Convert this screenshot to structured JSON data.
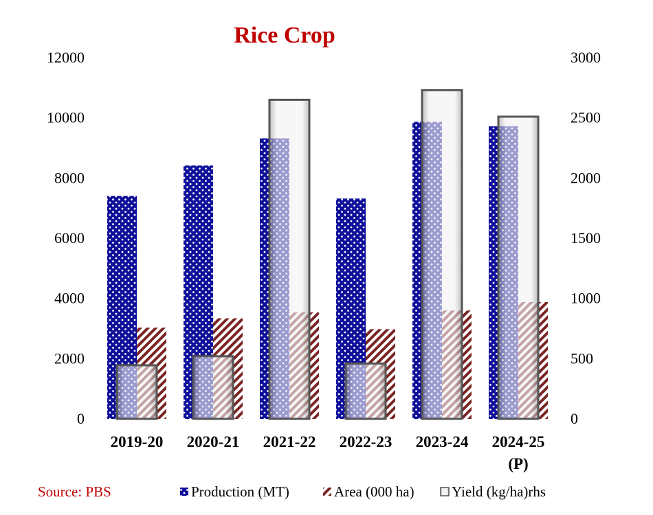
{
  "chart_data": {
    "type": "bar",
    "title": "Rice Crop",
    "categories": [
      "2019-20",
      "2020-21",
      "2021-22",
      "2022-23",
      "2023-24",
      "2024-25"
    ],
    "category_sublabels": [
      "",
      "",
      "",
      "",
      "",
      "(P)"
    ],
    "series": [
      {
        "name": "Production (MT)",
        "axis": "left",
        "values": [
          7410,
          8420,
          9320,
          7320,
          9870,
          9720
        ]
      },
      {
        "name": "Area (000 ha)",
        "axis": "left",
        "values": [
          3030,
          3340,
          3540,
          2980,
          3600,
          3880
        ]
      },
      {
        "name": "Yield (kg/ha)rhs",
        "axis": "right",
        "values": [
          445,
          520,
          2650,
          460,
          2730,
          2510
        ]
      }
    ],
    "y_left": {
      "min": 0,
      "max": 12000,
      "ticks": [
        "0",
        "2000",
        "4000",
        "6000",
        "8000",
        "10000",
        "12000"
      ]
    },
    "y_right": {
      "min": 0,
      "max": 3000,
      "ticks": [
        "0",
        "500",
        "1000",
        "1500",
        "2000",
        "2500",
        "3000"
      ]
    },
    "legend_position": "bottom",
    "grid": false
  },
  "source": "Source: PBS",
  "colors": {
    "title": "#c00000",
    "source": "#c00000",
    "production": "#0f0f9a",
    "area": "#7a2424",
    "yield_fill": "#eeeeee",
    "yield_edge": "#555555"
  }
}
